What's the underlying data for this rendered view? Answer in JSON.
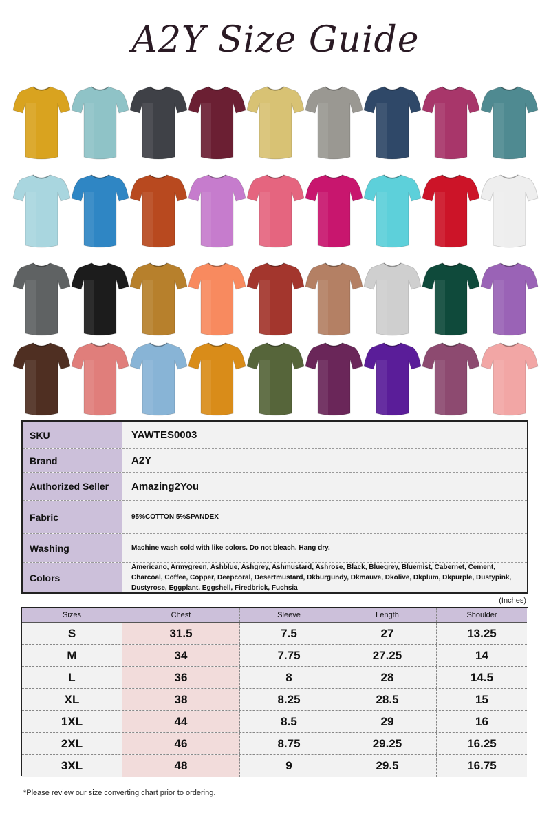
{
  "title": "A2Y Size Guide",
  "shirt_colors": [
    [
      "#d9a31f",
      "#8fc3c7",
      "#3f4147",
      "#6b1f33",
      "#d8c274",
      "#9a9892",
      "#2f4868",
      "#a8366a",
      "#4f8a91"
    ],
    [
      "#a9d6df",
      "#2f86c4",
      "#b8491f",
      "#c67ccd",
      "#e5657f",
      "#c8166e",
      "#5dd0da",
      "#cc1428",
      "#eeeeee"
    ],
    [
      "#5f6263",
      "#1c1c1c",
      "#b7802c",
      "#f88a5f",
      "#a3362d",
      "#b48064",
      "#cfcfcf",
      "#0f4a3b",
      "#9a63b6"
    ],
    [
      "#4f2f22",
      "#e07e7b",
      "#88b4d6",
      "#d98c19",
      "#56653a",
      "#6a2659",
      "#5a1d99",
      "#8d4a70",
      "#f2a6a5"
    ]
  ],
  "info": [
    {
      "label": "SKU",
      "value": "YAWTES0003"
    },
    {
      "label": "Brand",
      "value": "A2Y"
    },
    {
      "label": "Authorized Seller",
      "value": "Amazing2You"
    },
    {
      "label": "Fabric",
      "value": "95%COTTON 5%SPANDEX"
    },
    {
      "label": "Washing",
      "value": "Machine wash cold with like colors. Do not bleach. Hang dry."
    },
    {
      "label": "Colors",
      "value": "Americano, Armygreen, Ashblue, Ashgrey, Ashmustard, Ashrose, Black, Bluegrey, Bluemist, Cabernet, Cement, Charcoal, Coffee, Copper, Deepcoral, Desertmustard, Dkburgundy, Dkmauve, Dkolive, Dkplum, Dkpurple, Dustypink, Dustyrose, Eggplant, Eggshell, Firedbrick, Fuchsia"
    }
  ],
  "unit_label": "(Inches)",
  "size_table": {
    "headers": [
      "Sizes",
      "Chest",
      "Sleeve",
      "Length",
      "Shoulder"
    ],
    "rows": [
      [
        "S",
        "31.5",
        "7.5",
        "27",
        "13.25"
      ],
      [
        "M",
        "34",
        "7.75",
        "27.25",
        "14"
      ],
      [
        "L",
        "36",
        "8",
        "28",
        "14.5"
      ],
      [
        "XL",
        "38",
        "8.25",
        "28.5",
        "15"
      ],
      [
        "1XL",
        "44",
        "8.5",
        "29",
        "16"
      ],
      [
        "2XL",
        "46",
        "8.75",
        "29.25",
        "16.25"
      ],
      [
        "3XL",
        "48",
        "9",
        "29.5",
        "16.75"
      ]
    ]
  },
  "note": "*Please review our size converting chart prior to ordering."
}
